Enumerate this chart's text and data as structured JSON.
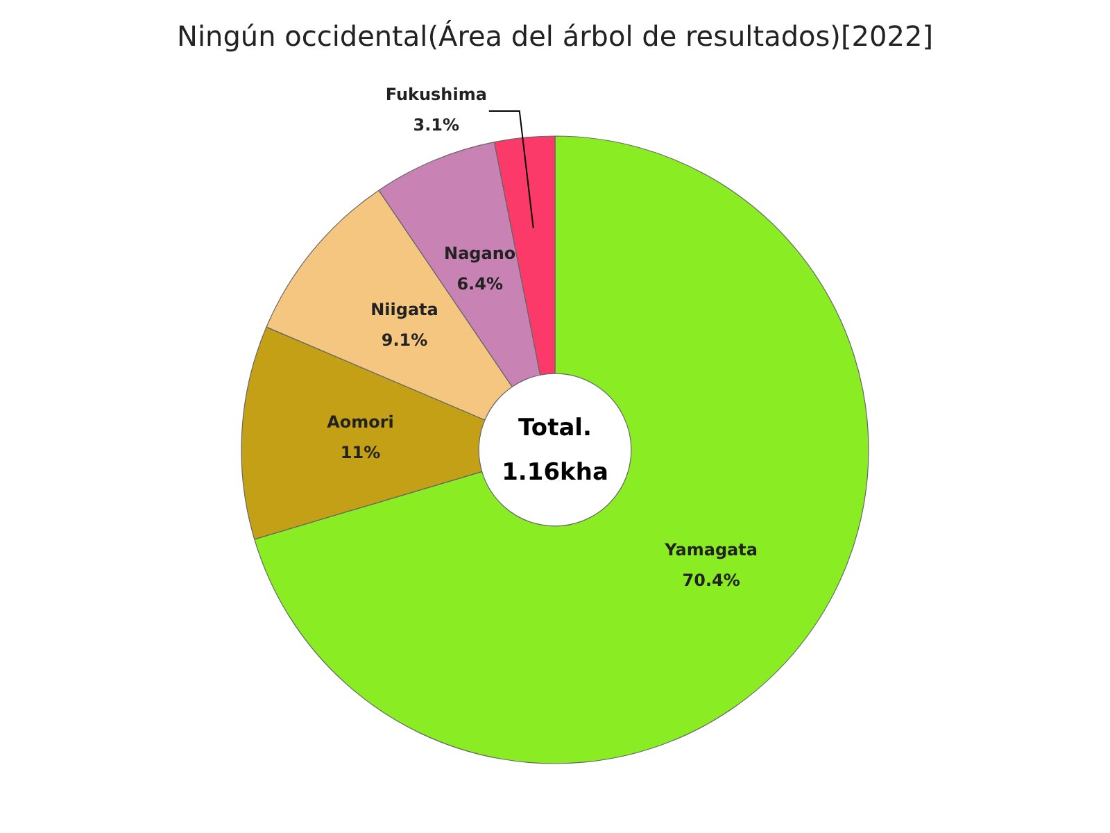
{
  "chart_data": {
    "type": "donut",
    "title": "Ningún occidental(Área del árbol de resultados)[2022]",
    "categories": [
      "Yamagata",
      "Aomori",
      "Niigata",
      "Nagano",
      "Fukushima"
    ],
    "values": [
      70.4,
      11,
      9.1,
      6.4,
      3.1
    ],
    "colors": [
      "#8aec22",
      "#c4a017",
      "#f5c67f",
      "#c882b4",
      "#fb3a6a"
    ],
    "value_labels": [
      "70.4%",
      "11%",
      "9.1%",
      "6.4%",
      "3.1%"
    ],
    "annotations": [
      "Total.",
      "1.16kha"
    ],
    "legend": false
  }
}
